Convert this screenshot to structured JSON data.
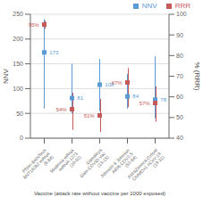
{
  "chart_data": {
    "type": "scatter",
    "categories": [
      "Pfizer-BioNTech\nBNT162b2 mRNA\n(8-84)",
      "Moderna mRNA\nmRNA-1273\n(10-02)",
      "Gamaleya\nGam-COVID-Vac\n(13-15)",
      "Johnson & Johnson\nAd26.COV2.S\n(52-84)",
      "AstraZeneca-Oxford\nChAdOx1-nCoV-19\n(19-31)"
    ],
    "xlabel": "Vaccine (attack rate without vaccine per 1000 exposed)",
    "ylabel": "NNV",
    "y2label": "% (RRR)",
    "ylim": [
      0,
      250
    ],
    "yticks": [
      0,
      50,
      100,
      150,
      200,
      250
    ],
    "y2lim": [
      40,
      100
    ],
    "y2ticks": [
      40,
      50,
      60,
      70,
      80,
      90,
      100
    ],
    "grid": true,
    "legend": "upper right",
    "data_labels": true,
    "series": [
      {
        "name": "NNV",
        "color": "#5b9bd5",
        "marker": "square",
        "values": [
          173,
          81,
          108,
          84,
          78
        ],
        "error_low": [
          60,
          50,
          55,
          60,
          40
        ],
        "error_high": [
          240,
          150,
          160,
          130,
          165
        ]
      },
      {
        "name": "RRR",
        "color": "#c55a5a",
        "marker": "square",
        "axis": "y2",
        "values": [
          95,
          54,
          51,
          67,
          57
        ],
        "value_labels": [
          "95%",
          "54%",
          "51%",
          "67%",
          "57%"
        ],
        "error_low": [
          93,
          44,
          43,
          55,
          48
        ],
        "error_high": [
          97,
          62,
          59,
          74,
          65
        ]
      }
    ]
  }
}
